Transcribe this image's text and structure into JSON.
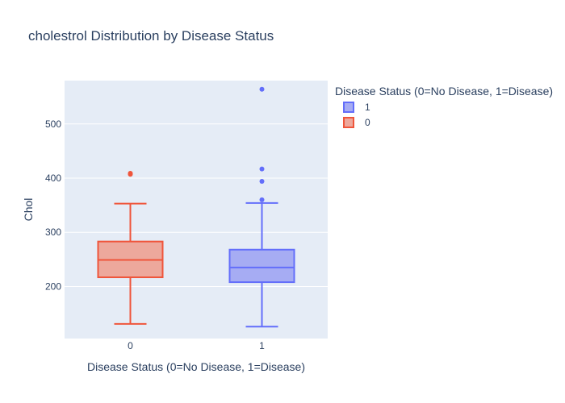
{
  "chart_data": {
    "type": "box",
    "title": "cholestrol Distribution by Disease Status",
    "xlabel": "Disease Status (0=No Disease, 1=Disease)",
    "ylabel": "Chol",
    "categories": [
      "0",
      "1"
    ],
    "ylim": [
      104,
      580
    ],
    "yticks": [
      200,
      300,
      400,
      500
    ],
    "grid": true,
    "legend": {
      "title": "Disease Status (0=No Disease, 1=Disease)",
      "placement": "right",
      "entries": [
        "1",
        "0"
      ]
    },
    "series": [
      {
        "name": "0",
        "category": "0",
        "color": "#EF553B",
        "fill": "#eda89c",
        "min": 131,
        "q1": 217,
        "median": 249,
        "q3": 283,
        "max": 353,
        "outliers": [
          407,
          409
        ]
      },
      {
        "name": "1",
        "category": "1",
        "color": "#636EFA",
        "fill": "#a6acf3",
        "min": 126,
        "q1": 208,
        "median": 235,
        "q3": 268,
        "max": 354,
        "outliers": [
          360,
          394,
          417,
          564
        ]
      }
    ]
  }
}
